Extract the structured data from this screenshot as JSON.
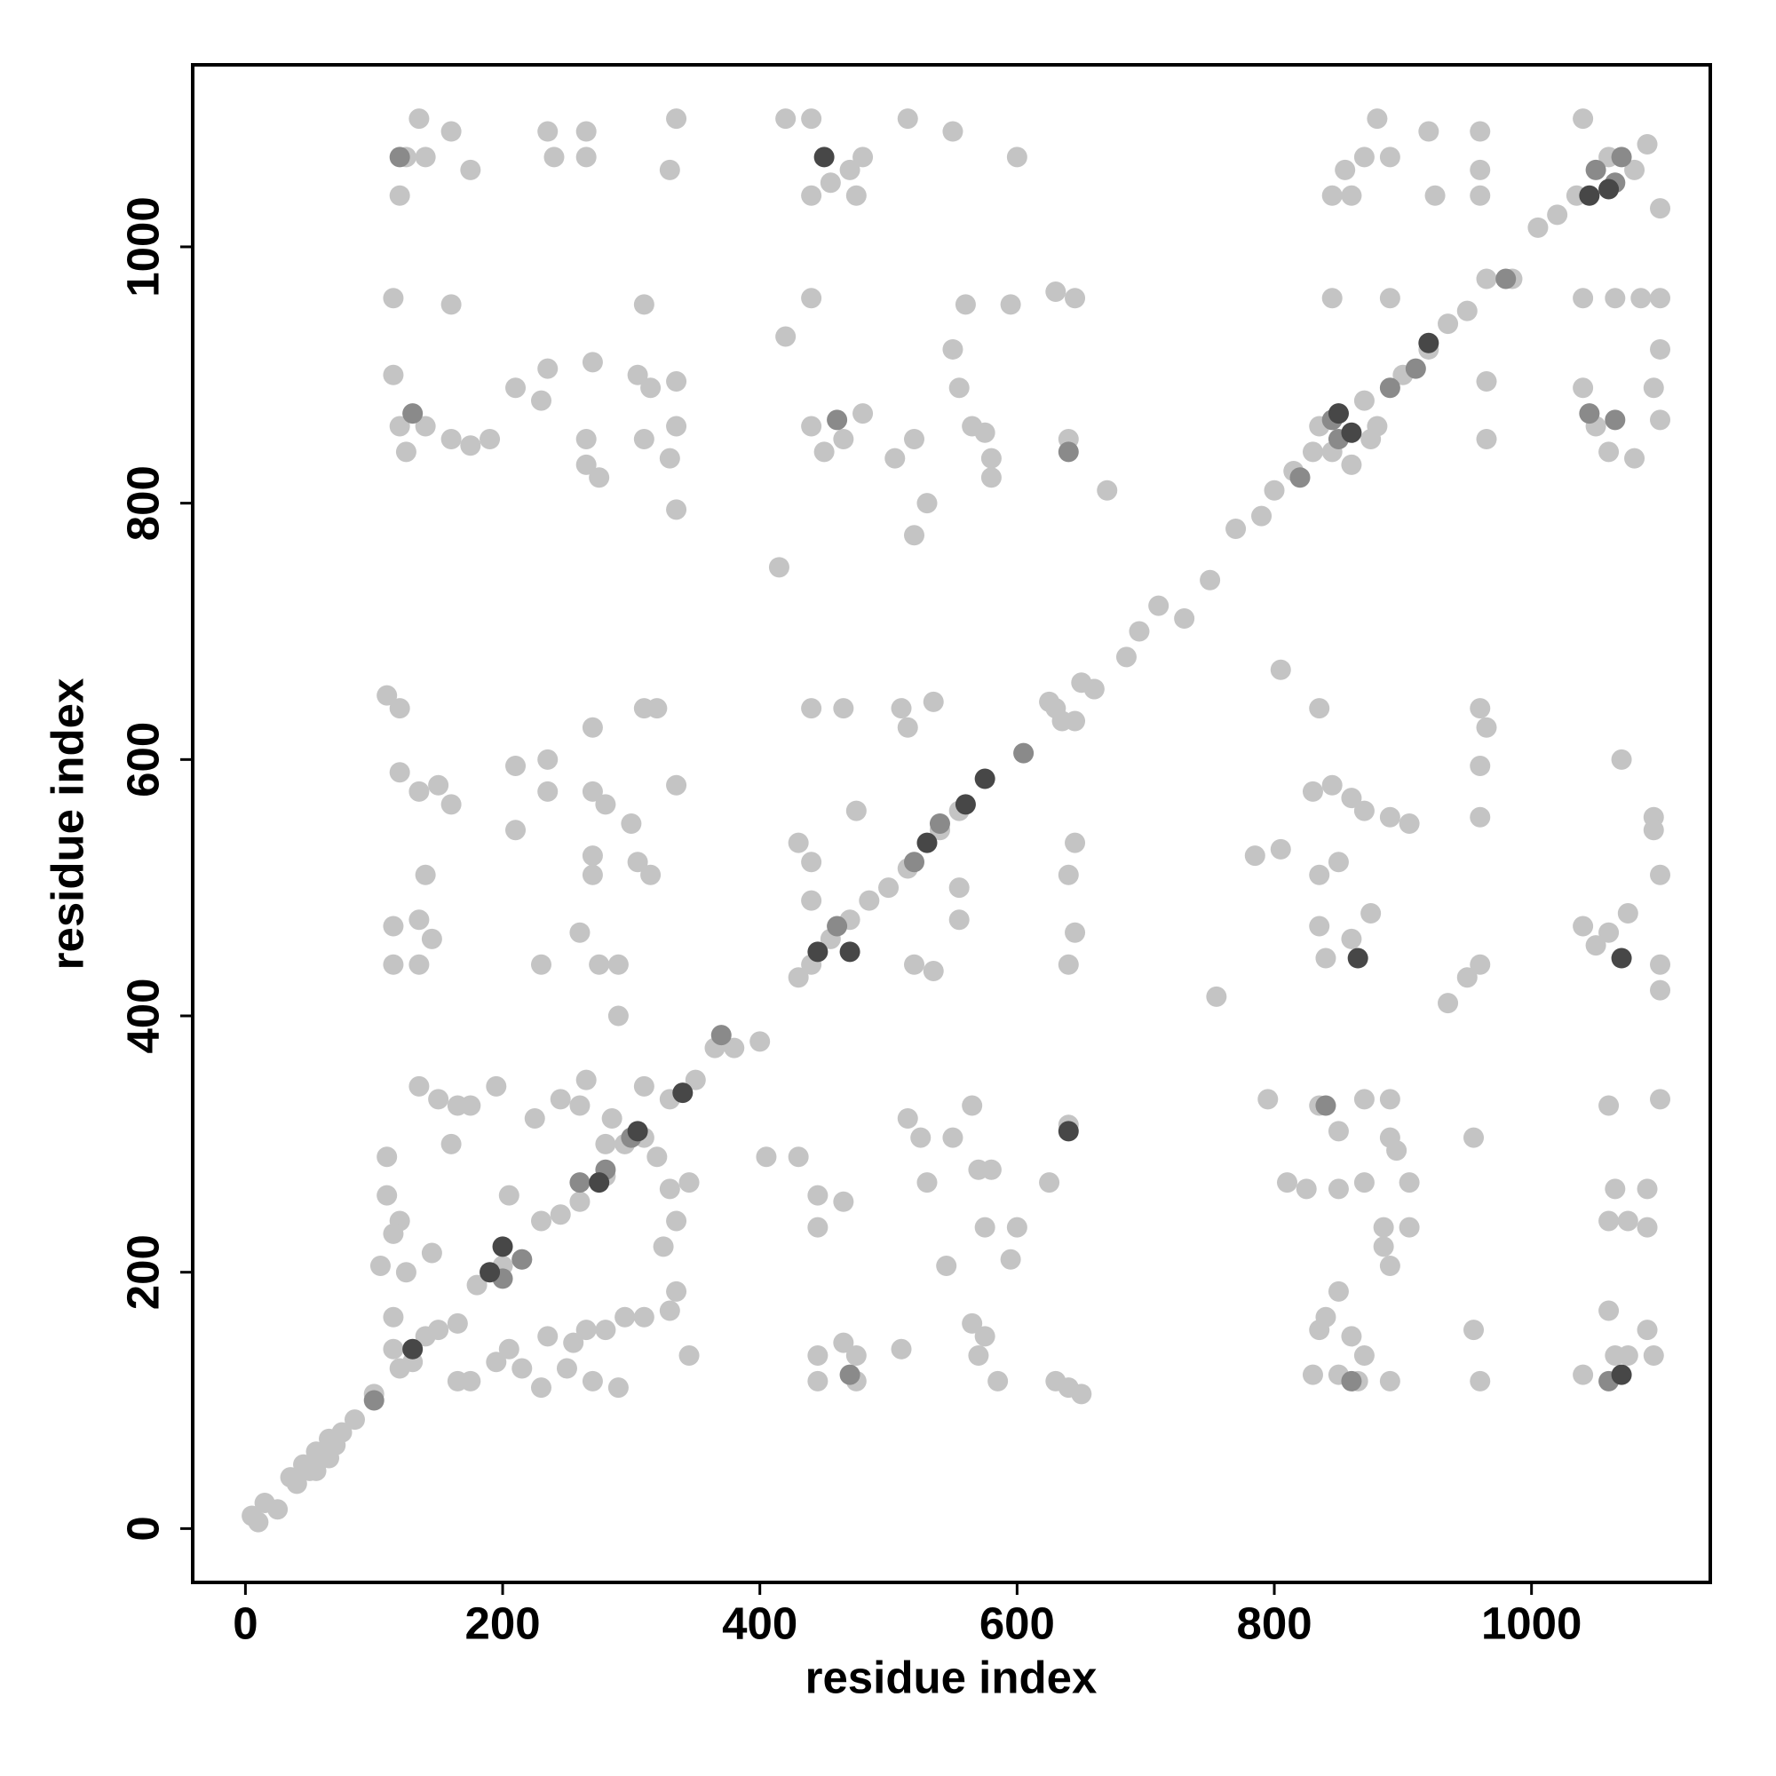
{
  "chart_data": {
    "type": "scatter",
    "x_label": "residue index",
    "y_label": "residue index",
    "xlim": [
      -41,
      1139
    ],
    "ylim": [
      -42,
      1142
    ],
    "xticks": [
      0,
      200,
      400,
      600,
      800,
      1000
    ],
    "yticks": [
      0,
      200,
      400,
      600,
      800,
      1000
    ],
    "series": [
      {
        "color": "#c4c4c4",
        "x": [
          5,
          10,
          15,
          25,
          35,
          45,
          50,
          55,
          60,
          65,
          70,
          75,
          40,
          55,
          65,
          85,
          100,
          130,
          150,
          165,
          180,
          200,
          215,
          230,
          245,
          260,
          280,
          295,
          310,
          330,
          350,
          365,
          380,
          400,
          430,
          440,
          455,
          470,
          485,
          500,
          515,
          540,
          555,
          630,
          645,
          660,
          685,
          695,
          710,
          730,
          750,
          770,
          790,
          800,
          815,
          830,
          850,
          870,
          880,
          900,
          920,
          935,
          950,
          965,
          985,
          1005,
          1020,
          1035,
          1060,
          1080,
          1090,
          120,
          125,
          135,
          140,
          160,
          175,
          235,
          240,
          265,
          265,
          330,
          335,
          420,
          440,
          440,
          455,
          470,
          480,
          475,
          515,
          550,
          600,
          845,
          855,
          870,
          860,
          880,
          890,
          920,
          925,
          960,
          960,
          960,
          1040,
          1100,
          115,
          160,
          310,
          420,
          440,
          560,
          595,
          630,
          645,
          845,
          890,
          1040,
          1065,
          1085,
          1100,
          115,
          120,
          125,
          140,
          160,
          175,
          190,
          210,
          230,
          235,
          270,
          265,
          265,
          275,
          305,
          315,
          310,
          330,
          335,
          335,
          335,
          440,
          450,
          465,
          480,
          505,
          520,
          530,
          520,
          550,
          555,
          565,
          575,
          580,
          580,
          640,
          670,
          835,
          845,
          860,
          875,
          965,
          965,
          1040,
          1050,
          1060,
          1080,
          1100,
          1100,
          1095,
          415,
          805,
          110,
          120,
          120,
          135,
          150,
          160,
          210,
          210,
          235,
          235,
          270,
          270,
          280,
          300,
          310,
          320,
          335,
          440,
          465,
          510,
          515,
          535,
          625,
          635,
          650,
          660,
          835,
          845,
          830,
          860,
          870,
          890,
          905,
          960,
          965,
          960,
          960,
          1070,
          1095,
          1095,
          785,
          805,
          115,
          115,
          135,
          135,
          140,
          145,
          230,
          260,
          270,
          270,
          275,
          290,
          290,
          305,
          315,
          430,
          440,
          440,
          475,
          520,
          535,
          555,
          555,
          640,
          645,
          645,
          640,
          755,
          835,
          835,
          850,
          840,
          860,
          875,
          935,
          950,
          960,
          1040,
          1050,
          1060,
          1075,
          1100,
          1100,
          1100,
          110,
          110,
          120,
          135,
          150,
          160,
          165,
          175,
          195,
          205,
          225,
          245,
          260,
          265,
          280,
          285,
          310,
          320,
          330,
          345,
          335,
          325,
          405,
          430,
          445,
          445,
          465,
          515,
          525,
          530,
          550,
          565,
          570,
          575,
          580,
          600,
          595,
          545,
          625,
          640,
          795,
          810,
          825,
          835,
          850,
          850,
          870,
          870,
          890,
          890,
          895,
          885,
          885,
          890,
          905,
          905,
          955,
          1060,
          1065,
          1060,
          1075,
          1090,
          1090,
          1100,
          105,
          115,
          125,
          145,
          115,
          115,
          120,
          140,
          165,
          175,
          195,
          205,
          215,
          230,
          235,
          250,
          255,
          265,
          270,
          280,
          290,
          295,
          310,
          330,
          335,
          345,
          445,
          445,
          465,
          475,
          475,
          510,
          565,
          570,
          575,
          585,
          630,
          640,
          650,
          830,
          835,
          840,
          850,
          850,
          860,
          865,
          870,
          890,
          955,
          960,
          1040,
          1060,
          1065,
          1075,
          1090,
          1095
        ],
        "values": [
          10,
          5,
          20,
          15,
          40,
          50,
          45,
          60,
          55,
          70,
          65,
          75,
          35,
          45,
          55,
          85,
          105,
          130,
          155,
          160,
          190,
          205,
          210,
          240,
          245,
          255,
          275,
          300,
          305,
          335,
          350,
          375,
          375,
          380,
          430,
          440,
          460,
          475,
          490,
          500,
          515,
          545,
          560,
          640,
          630,
          655,
          680,
          700,
          720,
          710,
          740,
          780,
          790,
          810,
          825,
          840,
          870,
          880,
          860,
          900,
          920,
          940,
          950,
          975,
          975,
          1015,
          1025,
          1040,
          1070,
          1060,
          1080,
          1040,
          1070,
          1100,
          1070,
          1090,
          1060,
          1090,
          1070,
          1090,
          1070,
          1060,
          1100,
          1100,
          1100,
          1040,
          1050,
          1060,
          1070,
          1040,
          1100,
          1090,
          1070,
          1040,
          1060,
          1070,
          1040,
          1100,
          1070,
          1090,
          1040,
          1090,
          1060,
          1040,
          1100,
          1030,
          960,
          955,
          955,
          930,
          960,
          955,
          955,
          965,
          960,
          960,
          960,
          960,
          960,
          960,
          960,
          900,
          860,
          840,
          860,
          850,
          845,
          850,
          890,
          880,
          905,
          910,
          850,
          830,
          820,
          900,
          890,
          850,
          835,
          895,
          860,
          795,
          860,
          840,
          850,
          870,
          835,
          850,
          800,
          775,
          920,
          890,
          860,
          855,
          835,
          820,
          850,
          810,
          860,
          840,
          830,
          850,
          895,
          850,
          890,
          860,
          840,
          835,
          920,
          865,
          890,
          750,
          670,
          650,
          640,
          590,
          575,
          580,
          565,
          545,
          595,
          600,
          575,
          625,
          575,
          565,
          550,
          640,
          640,
          580,
          640,
          640,
          640,
          625,
          645,
          645,
          630,
          660,
          655,
          640,
          580,
          575,
          570,
          560,
          555,
          550,
          640,
          625,
          595,
          555,
          600,
          555,
          545,
          525,
          530,
          470,
          440,
          440,
          475,
          510,
          460,
          440,
          465,
          510,
          525,
          440,
          440,
          400,
          520,
          510,
          535,
          520,
          490,
          560,
          440,
          435,
          475,
          500,
          510,
          535,
          465,
          440,
          415,
          510,
          470,
          520,
          445,
          460,
          480,
          410,
          430,
          440,
          470,
          455,
          465,
          480,
          440,
          420,
          510,
          290,
          260,
          240,
          345,
          335,
          300,
          330,
          330,
          345,
          260,
          320,
          335,
          330,
          350,
          300,
          320,
          345,
          290,
          265,
          270,
          240,
          220,
          290,
          290,
          260,
          235,
          255,
          320,
          305,
          270,
          305,
          330,
          280,
          235,
          280,
          235,
          210,
          205,
          270,
          315,
          335,
          270,
          265,
          330,
          310,
          265,
          335,
          270,
          335,
          305,
          295,
          235,
          220,
          205,
          270,
          235,
          305,
          330,
          265,
          240,
          240,
          265,
          235,
          335,
          205,
          230,
          200,
          215,
          165,
          140,
          125,
          150,
          115,
          115,
          130,
          140,
          125,
          110,
          150,
          125,
          145,
          155,
          115,
          155,
          110,
          165,
          165,
          170,
          185,
          135,
          135,
          115,
          145,
          135,
          115,
          140,
          160,
          135,
          150,
          115,
          115,
          110,
          105,
          120,
          155,
          165,
          185,
          120,
          150,
          115,
          135,
          115,
          155,
          115,
          120,
          170,
          135,
          135,
          155,
          135
        ]
      },
      {
        "color": "#8a8a8a",
        "x": [
          100,
          200,
          215,
          260,
          280,
          300,
          370,
          460,
          520,
          540,
          605,
          820,
          850,
          890,
          910,
          980,
          1050,
          1065,
          1070,
          120,
          460,
          845,
          1045,
          1065,
          130,
          1060,
          860,
          840,
          470,
          640
        ],
        "values": [
          100,
          195,
          210,
          270,
          280,
          305,
          385,
          470,
          520,
          550,
          605,
          820,
          850,
          890,
          905,
          975,
          1060,
          1050,
          1070,
          1070,
          865,
          865,
          870,
          865,
          870,
          115,
          115,
          330,
          120,
          840
        ]
      },
      {
        "color": "#474747",
        "x": [
          130,
          190,
          200,
          275,
          305,
          340,
          445,
          470,
          530,
          560,
          575,
          850,
          860,
          920,
          1045,
          1060,
          450,
          865,
          1070,
          640,
          1070
        ],
        "values": [
          140,
          200,
          220,
          270,
          310,
          340,
          450,
          450,
          535,
          565,
          585,
          870,
          855,
          925,
          1040,
          1045,
          1070,
          445,
          445,
          310,
          120
        ]
      }
    ]
  }
}
